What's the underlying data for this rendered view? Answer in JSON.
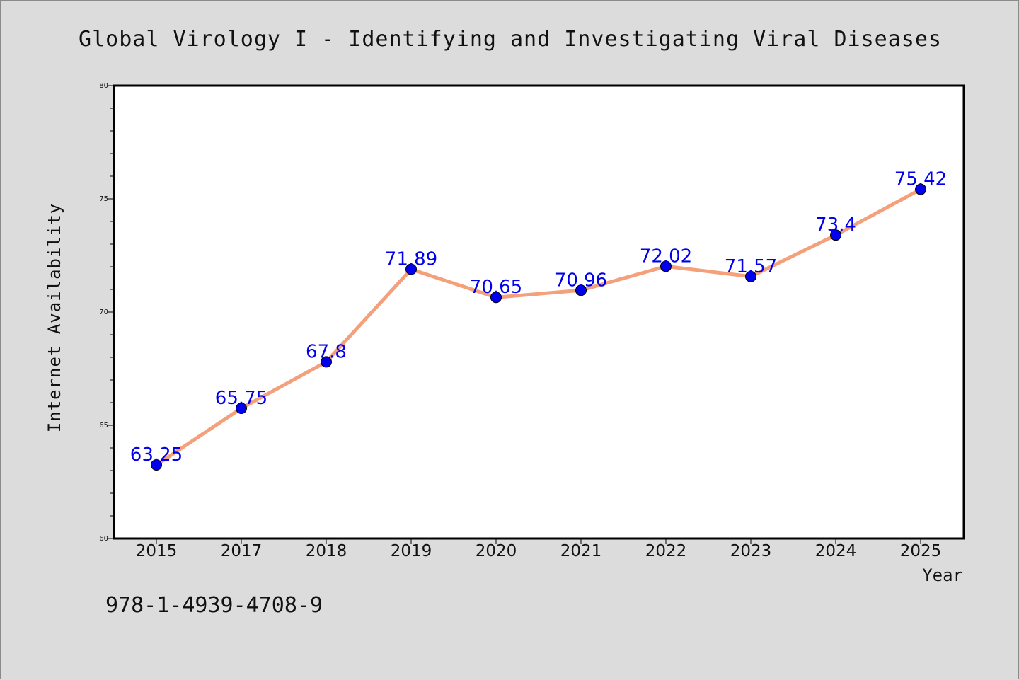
{
  "chart_data": {
    "type": "line",
    "title": "Global Virology I - Identifying and Investigating Viral Diseases",
    "xlabel": "Year",
    "ylabel": "Internet Availability",
    "categories": [
      "2015",
      "2017",
      "2018",
      "2019",
      "2020",
      "2021",
      "2022",
      "2023",
      "2024",
      "2025"
    ],
    "series": [
      {
        "values": [
          63.25,
          65.75,
          67.8,
          71.89,
          70.65,
          70.96,
          72.02,
          71.57,
          73.4,
          75.42
        ],
        "labels": [
          "63.25",
          "65.75",
          "67.8",
          "71.89",
          "70.65",
          "70.96",
          "72.02",
          "71.57",
          "73.4",
          "75.42"
        ]
      }
    ],
    "ylim": [
      60,
      80
    ],
    "yticks": [
      60,
      65,
      70,
      75,
      80
    ],
    "grid": false,
    "legend": "none",
    "colors": {
      "line": "#f4a07a",
      "marker": "#0000ee",
      "data_label": "#0000ee",
      "plot_background": "#ffffff",
      "figure_background": "#dcdcdc"
    }
  },
  "footer": {
    "isbn": "978-1-4939-4708-9"
  }
}
